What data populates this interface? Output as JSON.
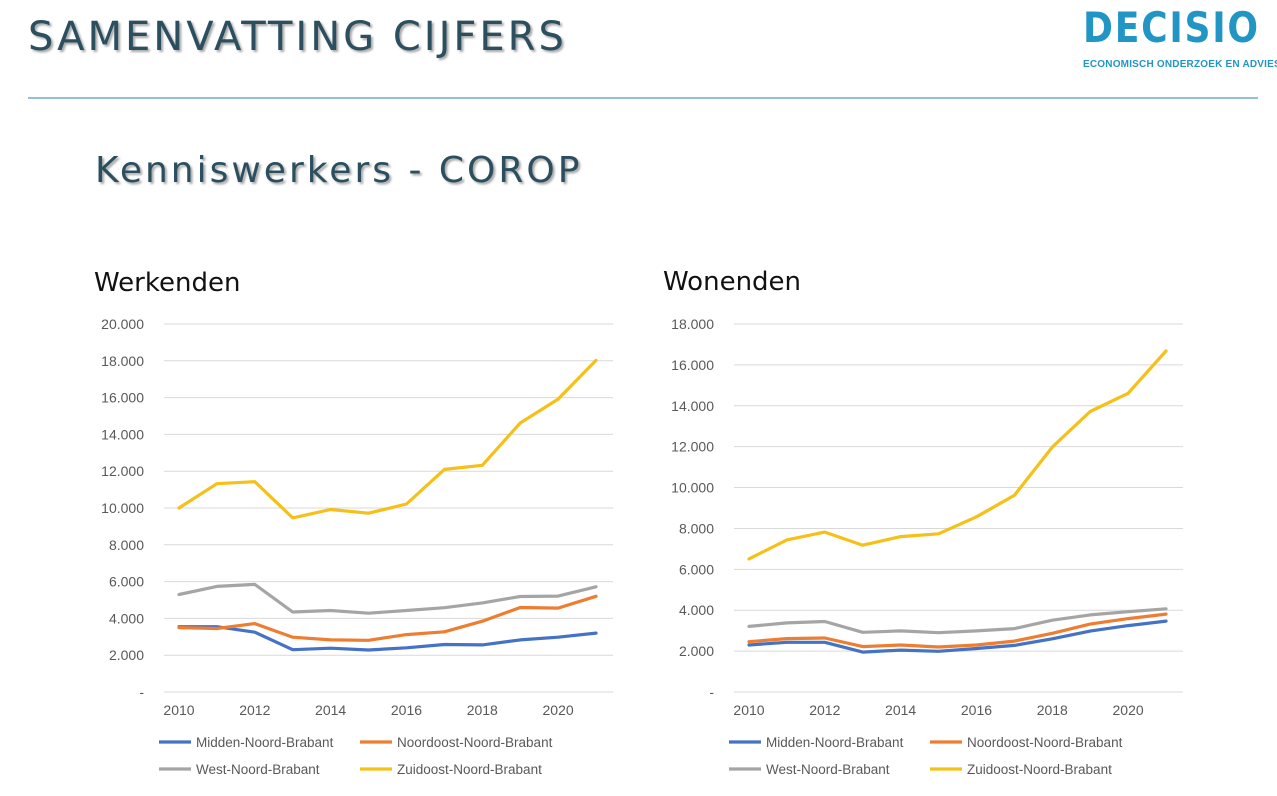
{
  "header": {
    "title": "SAMENVATTING CIJFERS",
    "logo_text": "DECISIO",
    "logo_tagline": "ECONOMISCH ONDERZOEK EN ADVIES"
  },
  "subtitle": "Kenniswerkers - COROP",
  "colors": {
    "title": "#2b4f5f",
    "logo": "#2196c4",
    "rule": "#8fc3d3",
    "grid": "#d9d9d9",
    "axis_text": "#595959"
  },
  "chart_data": [
    {
      "type": "line",
      "title": "Werkenden",
      "x": [
        2010,
        2011,
        2012,
        2013,
        2014,
        2015,
        2016,
        2017,
        2018,
        2019,
        2020,
        2021
      ],
      "x_tick_labels": [
        "2010",
        "2012",
        "2014",
        "2016",
        "2018",
        "2020"
      ],
      "ylim": [
        0,
        20000
      ],
      "y_tick_labels": [
        "-",
        "2.000",
        "4.000",
        "6.000",
        "8.000",
        "10.000",
        "12.000",
        "14.000",
        "16.000",
        "18.000",
        "20.000"
      ],
      "grid": true,
      "legend": "bottom",
      "series": [
        {
          "name": "Midden-Noord-Brabant",
          "color": "#4472c4",
          "values": [
            3550,
            3550,
            3250,
            2300,
            2380,
            2280,
            2400,
            2580,
            2560,
            2830,
            2980,
            3200
          ]
        },
        {
          "name": "Noordoost-Noord-Brabant",
          "color": "#ed7d31",
          "values": [
            3500,
            3450,
            3720,
            2980,
            2830,
            2810,
            3120,
            3270,
            3850,
            4590,
            4560,
            5200
          ]
        },
        {
          "name": "West-Noord-Brabant",
          "color": "#a5a5a5",
          "values": [
            5300,
            5740,
            5850,
            4350,
            4430,
            4280,
            4430,
            4580,
            4840,
            5190,
            5210,
            5720
          ]
        },
        {
          "name": "Zuidoost-Noord-Brabant",
          "color": "#f5c018",
          "values": [
            10000,
            11320,
            11430,
            9460,
            9920,
            9720,
            10220,
            12100,
            12320,
            14620,
            15920,
            18020
          ]
        }
      ]
    },
    {
      "type": "line",
      "title": "Wonenden",
      "x": [
        2010,
        2011,
        2012,
        2013,
        2014,
        2015,
        2016,
        2017,
        2018,
        2019,
        2020,
        2021
      ],
      "x_tick_labels": [
        "2010",
        "2012",
        "2014",
        "2016",
        "2018",
        "2020"
      ],
      "ylim": [
        0,
        18000
      ],
      "y_tick_labels": [
        "-",
        "2.000",
        "4.000",
        "6.000",
        "8.000",
        "10.000",
        "12.000",
        "14.000",
        "16.000",
        "18.000"
      ],
      "grid": true,
      "legend": "bottom",
      "series": [
        {
          "name": "Midden-Noord-Brabant",
          "color": "#4472c4",
          "values": [
            2300,
            2430,
            2430,
            1950,
            2050,
            1990,
            2130,
            2280,
            2600,
            2980,
            3250,
            3470
          ]
        },
        {
          "name": "Noordoost-Noord-Brabant",
          "color": "#ed7d31",
          "values": [
            2460,
            2610,
            2640,
            2220,
            2300,
            2200,
            2300,
            2490,
            2870,
            3320,
            3590,
            3810
          ]
        },
        {
          "name": "West-Noord-Brabant",
          "color": "#a5a5a5",
          "values": [
            3210,
            3380,
            3450,
            2920,
            2990,
            2900,
            2990,
            3100,
            3510,
            3770,
            3930,
            4070
          ]
        },
        {
          "name": "Zuidoost-Noord-Brabant",
          "color": "#f5c018",
          "values": [
            6510,
            7440,
            7820,
            7180,
            7600,
            7740,
            8570,
            9620,
            11980,
            13720,
            14610,
            16680
          ]
        }
      ]
    }
  ]
}
